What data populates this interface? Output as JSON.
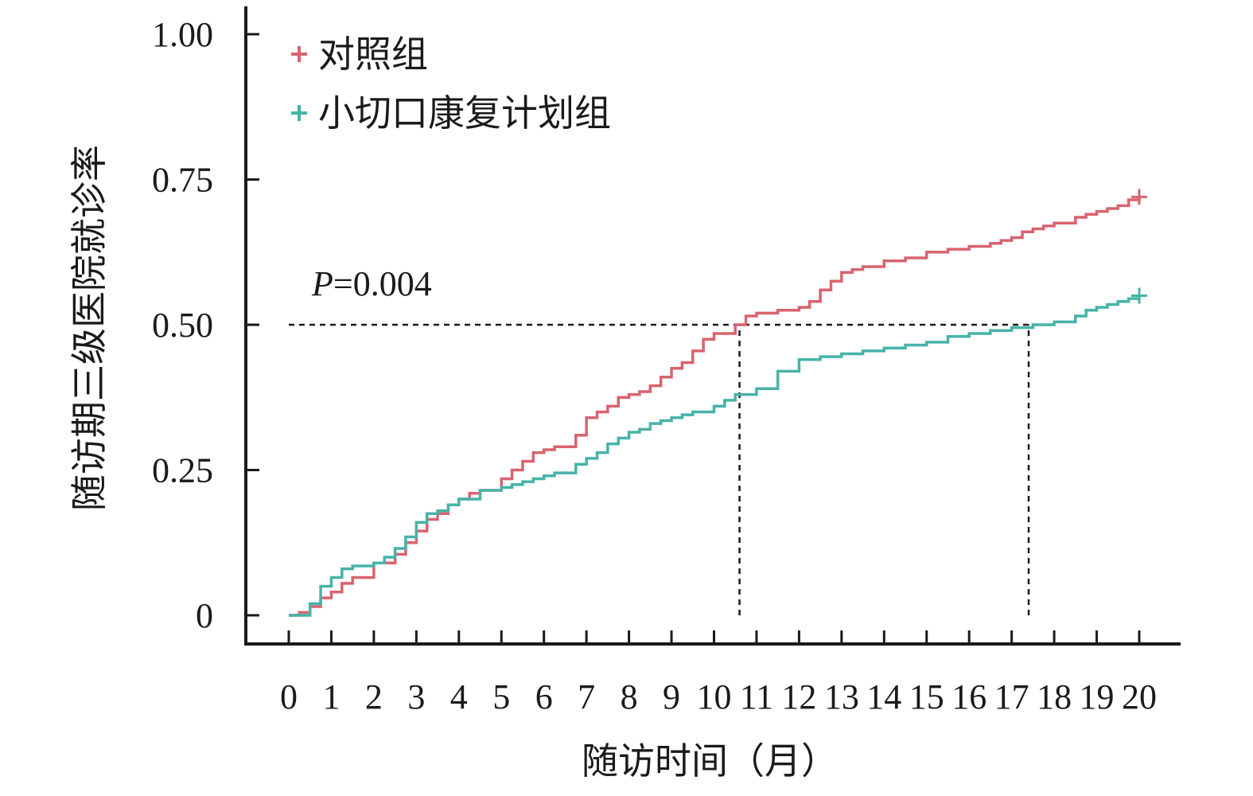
{
  "chart_data": {
    "type": "line",
    "subtype": "cumulative-incidence-step",
    "xlabel": "随访时间（月）",
    "ylabel": "随访期三级医院就诊率",
    "xlim": [
      0,
      20
    ],
    "ylim": [
      0,
      1
    ],
    "x_ticks": [
      0,
      1,
      2,
      3,
      4,
      5,
      6,
      7,
      8,
      9,
      10,
      11,
      12,
      13,
      14,
      15,
      16,
      17,
      18,
      19,
      20
    ],
    "y_ticks": [
      0,
      0.25,
      0.5,
      0.75,
      1.0
    ],
    "y_tick_labels": [
      "0",
      "0.25",
      "0.50",
      "0.75",
      "1.00"
    ],
    "grid": false,
    "legend_position": "top-left",
    "annotation": {
      "italic": "P",
      "rest": "=0.004"
    },
    "reference_lines": [
      {
        "type": "horizontal",
        "y": 0.5,
        "x_from": 0,
        "x_to": 17.4,
        "style": "dashed"
      },
      {
        "type": "vertical",
        "x": 10.6,
        "y_from": 0,
        "y_to": 0.5,
        "style": "dashed"
      },
      {
        "type": "vertical",
        "x": 17.4,
        "y_from": 0,
        "y_to": 0.5,
        "style": "dashed"
      }
    ],
    "series": [
      {
        "name": "对照组",
        "color": "#d9636e",
        "x": [
          0,
          0.25,
          0.5,
          0.75,
          1.0,
          1.25,
          1.5,
          2.0,
          2.5,
          2.75,
          3.0,
          3.25,
          3.5,
          3.75,
          4.0,
          4.25,
          4.5,
          5.0,
          5.25,
          5.5,
          5.75,
          6.0,
          6.25,
          6.75,
          7.0,
          7.25,
          7.5,
          7.75,
          8.0,
          8.25,
          8.5,
          8.75,
          9.0,
          9.25,
          9.5,
          9.75,
          10.0,
          10.5,
          10.75,
          11.0,
          11.5,
          12.0,
          12.25,
          12.5,
          12.75,
          13.0,
          13.25,
          13.5,
          14.0,
          14.5,
          15.0,
          15.5,
          16.0,
          16.5,
          16.75,
          17.0,
          17.25,
          17.5,
          17.75,
          18.0,
          18.5,
          18.75,
          19.0,
          19.25,
          19.5,
          19.75,
          20.0
        ],
        "y": [
          0,
          0.005,
          0.015,
          0.03,
          0.04,
          0.055,
          0.065,
          0.09,
          0.105,
          0.125,
          0.145,
          0.165,
          0.175,
          0.19,
          0.2,
          0.21,
          0.215,
          0.235,
          0.25,
          0.265,
          0.28,
          0.285,
          0.29,
          0.31,
          0.34,
          0.35,
          0.36,
          0.375,
          0.38,
          0.385,
          0.395,
          0.41,
          0.425,
          0.435,
          0.455,
          0.475,
          0.485,
          0.5,
          0.515,
          0.52,
          0.525,
          0.53,
          0.54,
          0.56,
          0.575,
          0.59,
          0.595,
          0.6,
          0.61,
          0.615,
          0.625,
          0.63,
          0.635,
          0.64,
          0.645,
          0.65,
          0.66,
          0.665,
          0.67,
          0.675,
          0.685,
          0.69,
          0.695,
          0.7,
          0.705,
          0.715,
          0.72
        ]
      },
      {
        "name": "小切口康复计划组",
        "color": "#47b3a8",
        "x": [
          0,
          0.25,
          0.5,
          0.75,
          1.0,
          1.25,
          1.5,
          2.0,
          2.25,
          2.5,
          2.75,
          3.0,
          3.25,
          3.5,
          3.75,
          4.0,
          4.5,
          5.0,
          5.25,
          5.5,
          5.75,
          6.0,
          6.25,
          6.75,
          7.0,
          7.25,
          7.5,
          7.75,
          8.0,
          8.25,
          8.5,
          8.75,
          9.0,
          9.25,
          9.5,
          10.0,
          10.25,
          10.5,
          11.0,
          11.5,
          12.0,
          12.5,
          13.0,
          13.5,
          14.0,
          14.5,
          15.0,
          15.5,
          16.0,
          16.5,
          17.0,
          17.5,
          18.0,
          18.5,
          18.75,
          19.0,
          19.25,
          19.5,
          19.75,
          20.0
        ],
        "y": [
          0,
          0.0,
          0.02,
          0.05,
          0.065,
          0.08,
          0.085,
          0.09,
          0.1,
          0.115,
          0.135,
          0.16,
          0.175,
          0.18,
          0.19,
          0.2,
          0.215,
          0.22,
          0.225,
          0.23,
          0.235,
          0.24,
          0.245,
          0.26,
          0.27,
          0.28,
          0.295,
          0.305,
          0.315,
          0.32,
          0.33,
          0.335,
          0.34,
          0.345,
          0.35,
          0.36,
          0.37,
          0.38,
          0.39,
          0.42,
          0.44,
          0.445,
          0.45,
          0.455,
          0.46,
          0.465,
          0.47,
          0.48,
          0.485,
          0.49,
          0.495,
          0.5,
          0.505,
          0.515,
          0.525,
          0.53,
          0.535,
          0.54,
          0.545,
          0.55
        ]
      }
    ]
  }
}
